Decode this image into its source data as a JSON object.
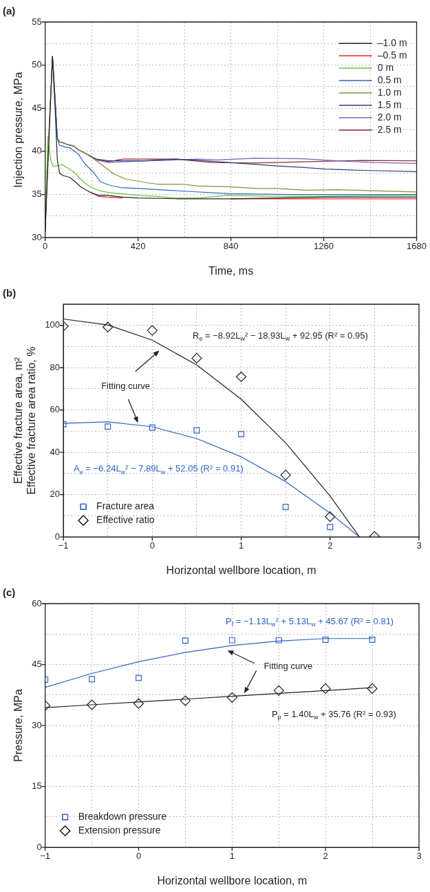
{
  "chart_data": [
    {
      "type": "line",
      "title": "(a)",
      "xlabel": "Time, ms",
      "ylabel": "Injection pressure, MPa",
      "xlim": [
        0,
        1680
      ],
      "xticks": [
        0,
        {
          "value": 210,
          "label": null
        },
        420,
        {
          "value": 630,
          "label": null
        },
        840,
        {
          "value": 1050,
          "label": null
        },
        1260,
        {
          "value": 1470,
          "label": null
        },
        1680
      ],
      "ylim": [
        30,
        55
      ],
      "yticks": [
        30,
        {
          "value": 32.5,
          "label": null
        },
        35,
        {
          "value": 37.5,
          "label": null
        },
        40,
        {
          "value": 42.5,
          "label": null
        },
        45,
        {
          "value": 47.5,
          "label": null
        },
        50,
        {
          "value": 52.5,
          "label": null
        },
        55
      ],
      "grid": true,
      "legend": "top right",
      "marker": "none",
      "series": [
        {
          "name": "–1.0 m",
          "color": "#231f20",
          "x": [
            0,
            15,
            33,
            45,
            55,
            65,
            80,
            110,
            130,
            160,
            200,
            240,
            280,
            350,
            420,
            600,
            840,
            1050,
            1260,
            1680
          ],
          "values": [
            30.7,
            40,
            51,
            45,
            39,
            37.5,
            37.2,
            37.0,
            36.6,
            35.9,
            35.3,
            34.9,
            34.9,
            34.7,
            34.6,
            34.5,
            34.5,
            34.6,
            34.7,
            34.7
          ]
        },
        {
          "name": "–0.5 m",
          "color": "#e8262b",
          "x": [
            200,
            240,
            280,
            350,
            420,
            600,
            840,
            1050,
            1260,
            1680
          ],
          "values": [
            35.3,
            34.8,
            34.7,
            34.6,
            null,
            null,
            34.5,
            34.5,
            34.5,
            34.5
          ]
        },
        {
          "name": "0 m",
          "color": "#6abf3b",
          "x": [
            0,
            12,
            25,
            35,
            60,
            75,
            100,
            130,
            156,
            180,
            210,
            250,
            300,
            341,
            420,
            500,
            581,
            700,
            821,
            1050,
            1260,
            1680
          ],
          "values": [
            30.7,
            41.7,
            39,
            38.3,
            38.3,
            38.5,
            38.1,
            37.6,
            36.9,
            36.3,
            35.8,
            35.4,
            35.2,
            35.1,
            34.9,
            34.8,
            34.6,
            34.6,
            34.9,
            34.8,
            34.8,
            34.9
          ]
        },
        {
          "name": "0.5 m",
          "color": "#2c64c0",
          "x": [
            33,
            45,
            55,
            65,
            80,
            90,
            112,
            150,
            178,
            221,
            249,
            287,
            341,
            451,
            581,
            832,
            1105,
            1680
          ],
          "values": [
            51,
            46,
            41.5,
            40.7,
            40.6,
            40.5,
            40.4,
            39.7,
            38.6,
            37.5,
            36.5,
            36.1,
            35.8,
            35.65,
            35.45,
            35.1,
            35.0,
            35.0
          ]
        },
        {
          "name": "1.0 m",
          "color": "#8b8b3a",
          "x": [
            0,
            15,
            33,
            45,
            55,
            65,
            80,
            100,
            130,
            150,
            180,
            210,
            254,
            309,
            363,
            451,
            505,
            614,
            690,
            832,
            963,
            1050,
            1182,
            1323,
            1680
          ],
          "values": [
            30.7,
            41,
            51,
            46,
            41.5,
            41.1,
            41.0,
            40.8,
            40.6,
            40.2,
            39.8,
            39.3,
            38.5,
            37.4,
            36.8,
            36.4,
            36.2,
            36.2,
            36.0,
            35.9,
            35.7,
            35.7,
            35.5,
            35.55,
            35.3
          ]
        },
        {
          "name": "1.5 m",
          "color": "#2e3c78",
          "x": [
            0,
            15,
            33,
            45,
            55,
            65,
            80,
            100,
            130,
            150,
            180,
            232,
            287,
            451,
            592,
            723,
            887,
            1050,
            1160,
            1269,
            1433,
            1680
          ],
          "values": [
            30.7,
            41,
            51,
            46,
            41.5,
            41.1,
            41.0,
            40.8,
            40.6,
            40.2,
            39.8,
            39.1,
            38.9,
            38.9,
            39.1,
            38.9,
            38.6,
            38.3,
            38.15,
            37.95,
            37.8,
            37.65
          ]
        },
        {
          "name": "2.0 m",
          "color": "#7b5cc4",
          "x": [
            33,
            45,
            55,
            65,
            80,
            100,
            130,
            150,
            180,
            232,
            287,
            363,
            472,
            690,
            778,
            952,
            1160,
            1323,
            1487,
            1680
          ],
          "values": [
            51,
            46,
            41.5,
            41.1,
            41.0,
            40.8,
            40.6,
            40.2,
            39.8,
            39.0,
            38.7,
            38.8,
            38.9,
            39.1,
            39.0,
            39.2,
            39.15,
            38.9,
            38.7,
            38.6
          ]
        },
        {
          "name": "2.5 m",
          "color": "#8b2b35",
          "x": [
            100,
            130,
            150,
            180,
            232,
            287,
            352,
            592,
            756,
            941,
            1105,
            1433,
            1680
          ],
          "values": [
            40.8,
            40.6,
            40.2,
            39.8,
            39.0,
            38.8,
            39.1,
            39.1,
            38.7,
            38.65,
            38.75,
            38.95,
            38.9
          ]
        }
      ]
    },
    {
      "type": "scatter",
      "title": "(b)",
      "xlabel": "Horizontal wellbore location, m",
      "ylabel": "Effective fracture area, m²\nEffective fracture area ratio, %",
      "xlim": [
        -1,
        3
      ],
      "xticks": [
        {
          "value": -1,
          "label": "−1"
        },
        {
          "value": -0.5,
          "label": null
        },
        0,
        {
          "value": 0.5,
          "label": null
        },
        1,
        {
          "value": 1.5,
          "label": null
        },
        2,
        {
          "value": 2.5,
          "label": null
        },
        3
      ],
      "ylim": [
        0,
        110
      ],
      "yticks": [
        0,
        {
          "value": 10,
          "label": null
        },
        20,
        {
          "value": 30,
          "label": null
        },
        40,
        {
          "value": 50,
          "label": null
        },
        60,
        {
          "value": 70,
          "label": null
        },
        80,
        {
          "value": 90,
          "label": null
        },
        100,
        {
          "value": 110,
          "label": null
        }
      ],
      "grid": true,
      "legend": "bottom left",
      "series": [
        {
          "name": "Fracture area",
          "type": "scatter",
          "marker": "square",
          "color": "#2c64c0",
          "x": [
            -1,
            -0.5,
            0,
            0.5,
            1,
            1.5,
            2
          ],
          "values": [
            53.3,
            52.2,
            51.7,
            50.4,
            48.6,
            14.2,
            4.7
          ]
        },
        {
          "name": "Effective ratio",
          "type": "scatter",
          "marker": "diamond",
          "color": "#231f20",
          "x": [
            -1,
            -0.5,
            0,
            0.5,
            1,
            1.5,
            2,
            2.5
          ],
          "values": [
            99.6,
            99.2,
            97.6,
            84.5,
            75.7,
            29.3,
            9.6,
            0.3
          ]
        },
        {
          "type": "line",
          "marker": "none",
          "color": "#2c64c0",
          "x": [
            -1,
            -0.5,
            0,
            0.5,
            1,
            1.5,
            2,
            2.33
          ],
          "values": [
            53.7,
            54.4,
            52.1,
            46.5,
            37.9,
            26.2,
            11.3,
            0
          ]
        },
        {
          "type": "line",
          "marker": "none",
          "color": "#231f20",
          "x": [
            -1,
            -0.5,
            0,
            0.5,
            1,
            1.5,
            2,
            2.33
          ],
          "values": [
            103.0,
            100.2,
            93.0,
            81.3,
            65.1,
            44.5,
            19.4,
            0
          ]
        }
      ],
      "annotations": [
        "R$_{e}$ = −8.92L$_{w}$² − 18.93L$_{w}$ + 92.95 (R² = 0.95)",
        "Fitting curve",
        "A$_{e}$ = −6.24L$_{w}$² − 7.89L$_{w}$ + 52.05 (R² = 0.91)"
      ]
    },
    {
      "type": "scatter",
      "title": "(c)",
      "xlabel": "Horizontal wellbore location, m",
      "ylabel": "Pressure, MPa",
      "xlim": [
        -1,
        3
      ],
      "xticks": [
        {
          "value": -1,
          "label": "−1"
        },
        {
          "value": -0.5,
          "label": null
        },
        0,
        {
          "value": 0.5,
          "label": null
        },
        1,
        {
          "value": 1.5,
          "label": null
        },
        2,
        {
          "value": 2.5,
          "label": null
        },
        3
      ],
      "ylim": [
        0,
        60
      ],
      "yticks": [
        0,
        {
          "value": 7.5,
          "label": null
        },
        15,
        {
          "value": 22.5,
          "label": null
        },
        30,
        {
          "value": 37.5,
          "label": null
        },
        45,
        {
          "value": 52.5,
          "label": null
        },
        60
      ],
      "grid": true,
      "legend": "bottom left",
      "series": [
        {
          "name": "Breakdown pressure",
          "type": "scatter",
          "marker": "square",
          "color": "#2c64c0",
          "x": [
            -1,
            -0.5,
            0,
            0.5,
            1,
            1.5,
            2,
            2.5
          ],
          "values": [
            41.3,
            41.4,
            41.7,
            50.9,
            51.0,
            51.0,
            51.1,
            51.1
          ]
        },
        {
          "name": "Extension pressure",
          "type": "scatter",
          "marker": "diamond",
          "color": "#231f20",
          "x": [
            -1,
            -0.5,
            0,
            0.5,
            1,
            1.5,
            2,
            2.5
          ],
          "values": [
            34.9,
            35.1,
            35.4,
            36.1,
            36.9,
            38.6,
            39.1,
            39.1
          ]
        },
        {
          "type": "line",
          "marker": "none",
          "color": "#2c64c0",
          "x": [
            -1,
            -0.5,
            0,
            0.5,
            1,
            1.5,
            2,
            2.5
          ],
          "values": [
            39.4,
            42.8,
            45.7,
            48.0,
            49.7,
            50.8,
            51.4,
            51.4
          ]
        },
        {
          "type": "line",
          "marker": "none",
          "color": "#231f20",
          "x": [
            -1,
            -0.5,
            0,
            0.5,
            1,
            1.5,
            2,
            2.5
          ],
          "values": [
            34.4,
            35.1,
            35.8,
            36.5,
            37.2,
            37.9,
            38.6,
            39.3
          ]
        }
      ],
      "annotations": [
        "P$_{f}$ = −1.13L$_{w}$² + 5.13L$_{w}$ + 45.67 (R² = 0.81)",
        "Fitting curve",
        "P$_{p}$ = 1.40L$_{w}$ + 35.76 (R² = 0.93)"
      ]
    }
  ]
}
